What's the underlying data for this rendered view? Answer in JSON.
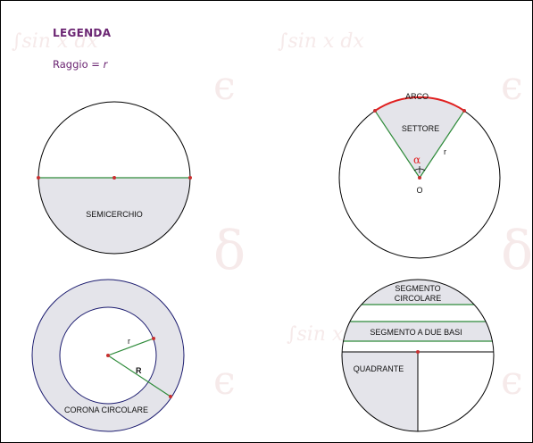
{
  "legend": {
    "title": "LEGENDA",
    "radius_prefix": "Raggio = ",
    "radius_symbol": "r"
  },
  "watermark": {
    "integral": "∫sin x dx",
    "epsilon": "ϵ",
    "delta": "δ",
    "color": "#f6eaea"
  },
  "figures": {
    "semicircle": {
      "label": "SEMICERCHIO"
    },
    "sector": {
      "arc_label": "ARCO",
      "sector_label": "SETTORE",
      "angle_label": "α",
      "radius_label": "r",
      "center_label": "O"
    },
    "annulus": {
      "label": "CORONA CIRCOLARE",
      "inner_radius_label": "r",
      "outer_radius_label": "R"
    },
    "segments": {
      "segment_label_line1": "SEGMENTO",
      "segment_label_line2": "CIRCOLARE",
      "two_base_label": "SEGMENTO A DUE BASI",
      "quadrant_label": "QUADRANTE"
    }
  },
  "colors": {
    "title": "#6b2572",
    "fill": "#e4e4ea",
    "chord": "#2e8b3a",
    "arc": "#e02020",
    "point": "#c83030",
    "annulus_outline": "#1a1a6e"
  }
}
